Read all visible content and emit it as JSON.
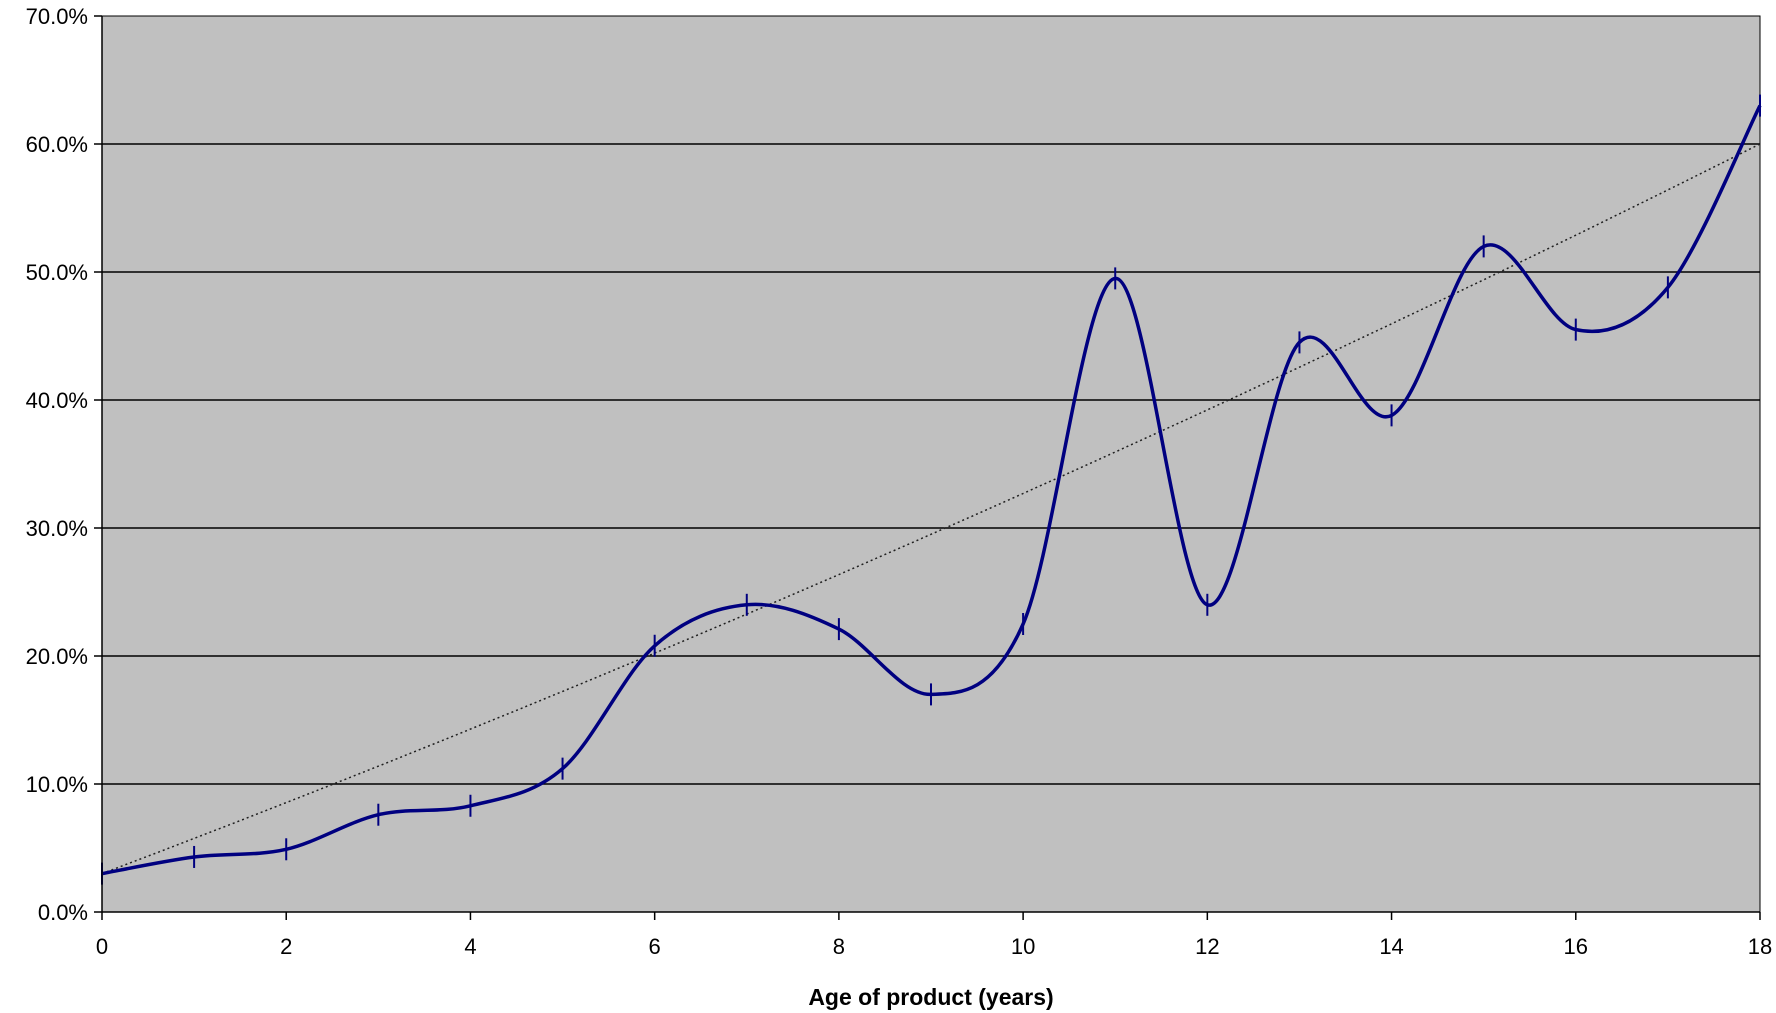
{
  "chart_data": {
    "type": "line",
    "title": "",
    "xlabel": "Age of product (years)",
    "ylabel": "",
    "xlim": [
      0,
      18
    ],
    "ylim": [
      0,
      70
    ],
    "x_ticks": [
      "0",
      "2",
      "4",
      "6",
      "8",
      "10",
      "12",
      "14",
      "16",
      "18"
    ],
    "y_ticks": [
      "0.0%",
      "10.0%",
      "20.0%",
      "30.0%",
      "40.0%",
      "50.0%",
      "60.0%",
      "70.0%"
    ],
    "grid": "horizontal",
    "legend": "none",
    "series": [
      {
        "style": "smoothed-line-with-dash-markers",
        "x": [
          0,
          1,
          2,
          3,
          4,
          5,
          6,
          7,
          8,
          9,
          10,
          11,
          12,
          13,
          14,
          15,
          16,
          17,
          18
        ],
        "values": [
          3.0,
          4.3,
          4.9,
          7.6,
          8.3,
          11.2,
          20.8,
          24.0,
          22.1,
          17.0,
          22.5,
          49.5,
          24.0,
          44.5,
          38.8,
          52.0,
          45.5,
          48.8,
          63.0
        ]
      },
      {
        "style": "dotted-trendline",
        "x": [
          0,
          18
        ],
        "values": [
          3.0,
          60.0
        ],
        "curve": "polynomial"
      }
    ],
    "colors": {
      "plot_background": "#c0c0c0",
      "series_line": "#000080",
      "trendline": "#202020",
      "gridline": "#000000"
    }
  }
}
